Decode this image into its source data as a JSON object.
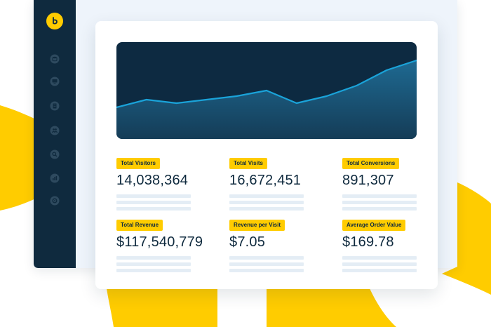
{
  "colors": {
    "accent_yellow": "#ffcc00",
    "sidebar_navy": "#0f2a3e",
    "chart_background": "#0d2a41",
    "chart_line": "#1aa3d9",
    "card_white": "#ffffff",
    "placeholder_gray": "#e4edf5"
  },
  "sidebar": {
    "logo_icon": "brand-logo-icon",
    "items": [
      {
        "icon": "database-icon"
      },
      {
        "icon": "monitor-icon"
      },
      {
        "icon": "document-icon"
      },
      {
        "icon": "users-icon"
      },
      {
        "icon": "search-icon"
      },
      {
        "icon": "bar-chart-icon"
      },
      {
        "icon": "settings-icon"
      }
    ]
  },
  "chart_data": {
    "type": "area",
    "x": [
      0,
      1,
      2,
      3,
      4,
      5,
      6,
      7,
      8,
      9,
      10
    ],
    "values": [
      45,
      56,
      51,
      56,
      61,
      69,
      51,
      61,
      76,
      98,
      112
    ],
    "ylim": [
      0,
      138
    ],
    "title": "",
    "xlabel": "",
    "ylabel": "",
    "grid": false
  },
  "metrics": [
    {
      "label": "Total Visitors",
      "value": "14,038,364"
    },
    {
      "label": "Total Visits",
      "value": "16,672,451"
    },
    {
      "label": "Total Conversions",
      "value": "891,307"
    },
    {
      "label": "Total Revenue",
      "value": "$117,540,779"
    },
    {
      "label": "Revenue per Visit",
      "value": "$7.05"
    },
    {
      "label": "Average Order Value",
      "value": "$169.78"
    }
  ]
}
